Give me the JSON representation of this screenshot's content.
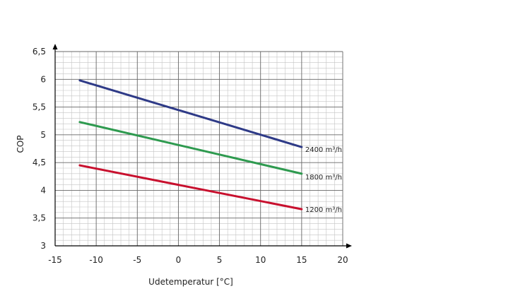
{
  "chart_data": {
    "type": "line",
    "xlabel": "Udetemperatur [°C]",
    "ylabel": "COP",
    "xlim": [
      -15,
      20
    ],
    "ylim": [
      3,
      6.5
    ],
    "x_ticks": [
      "-15",
      "-10",
      "-5",
      "0",
      "5",
      "10",
      "15",
      "20"
    ],
    "y_ticks": [
      "3",
      "3,5",
      "4",
      "4,5",
      "5",
      "5,5",
      "6",
      "6,5"
    ],
    "grid": true,
    "x": [
      -12,
      15
    ],
    "series": [
      {
        "name": "2400 m³/h",
        "color": "#2e3a87",
        "values": [
          5.98,
          4.78
        ]
      },
      {
        "name": "1800 m³/h",
        "color": "#2e9a4f",
        "values": [
          5.23,
          4.3
        ]
      },
      {
        "name": "1200 m³/h",
        "color": "#c8102e",
        "values": [
          4.45,
          3.66
        ]
      }
    ]
  }
}
